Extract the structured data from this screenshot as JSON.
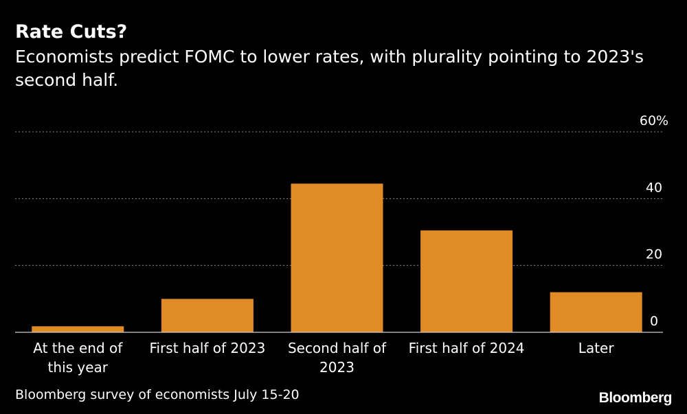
{
  "header": {
    "title": "Rate Cuts?",
    "subtitle": "Economists predict FOMC to lower rates, with plurality pointing to 2023's second half."
  },
  "footer": {
    "source": "Bloomberg survey of economists July 15-20",
    "brand": "Bloomberg"
  },
  "colors": {
    "background": "#000000",
    "bar": "#e08b26",
    "grid": "#8a8a8a",
    "text": "#ffffff"
  },
  "chart_data": {
    "type": "bar",
    "title": "Rate Cuts?",
    "subtitle": "Economists predict FOMC to lower rates, with plurality pointing to 2023's second half.",
    "categories": [
      "At the end of this year",
      "First half of 2023",
      "Second half of 2023",
      "First half of 2024",
      "Later"
    ],
    "category_lines": [
      [
        "At the end of",
        "this year"
      ],
      [
        "First half of 2023"
      ],
      [
        "Second half of",
        "2023"
      ],
      [
        "First half of 2024"
      ],
      [
        "Later"
      ]
    ],
    "values": [
      1.8,
      10,
      44.5,
      30.5,
      12
    ],
    "ylim": [
      0,
      60
    ],
    "yticks": [
      0,
      20,
      40,
      60
    ],
    "ytick_labels": [
      "0",
      "20",
      "40",
      "60%"
    ],
    "xlabel": "",
    "ylabel": "",
    "grid": true,
    "axis_side": "right"
  }
}
